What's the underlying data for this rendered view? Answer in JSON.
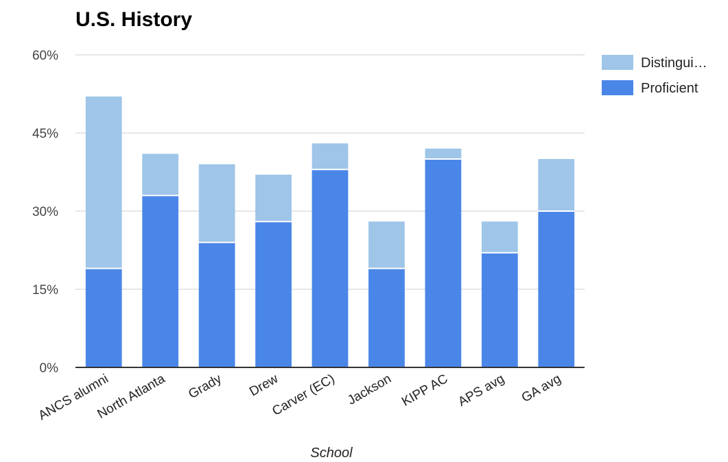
{
  "chart_data": {
    "type": "bar",
    "stacked": true,
    "title": "U.S. History",
    "xlabel": "School",
    "ylabel": "",
    "ylim": [
      0,
      60
    ],
    "yticks": [
      0,
      15,
      30,
      45,
      60
    ],
    "ytick_labels": [
      "0%",
      "15%",
      "30%",
      "45%",
      "60%"
    ],
    "grid": true,
    "legend_position": "right",
    "categories": [
      "ANCS alumni",
      "North Atlanta",
      "Grady",
      "Drew",
      "Carver (EC)",
      "Jackson",
      "KIPP AC",
      "APS avg",
      "GA avg"
    ],
    "series": [
      {
        "name": "Proficient",
        "color": "#4a86e8",
        "values": [
          19,
          33,
          24,
          28,
          38,
          19,
          40,
          22,
          30
        ]
      },
      {
        "name": "Distingui…",
        "color": "#9fc5e8",
        "values": [
          33,
          8,
          15,
          9,
          5,
          9,
          2,
          6,
          10
        ]
      }
    ],
    "legend": [
      {
        "label": "Distingui…",
        "color": "#9fc5e8"
      },
      {
        "label": "Proficient",
        "color": "#4a86e8"
      }
    ]
  }
}
